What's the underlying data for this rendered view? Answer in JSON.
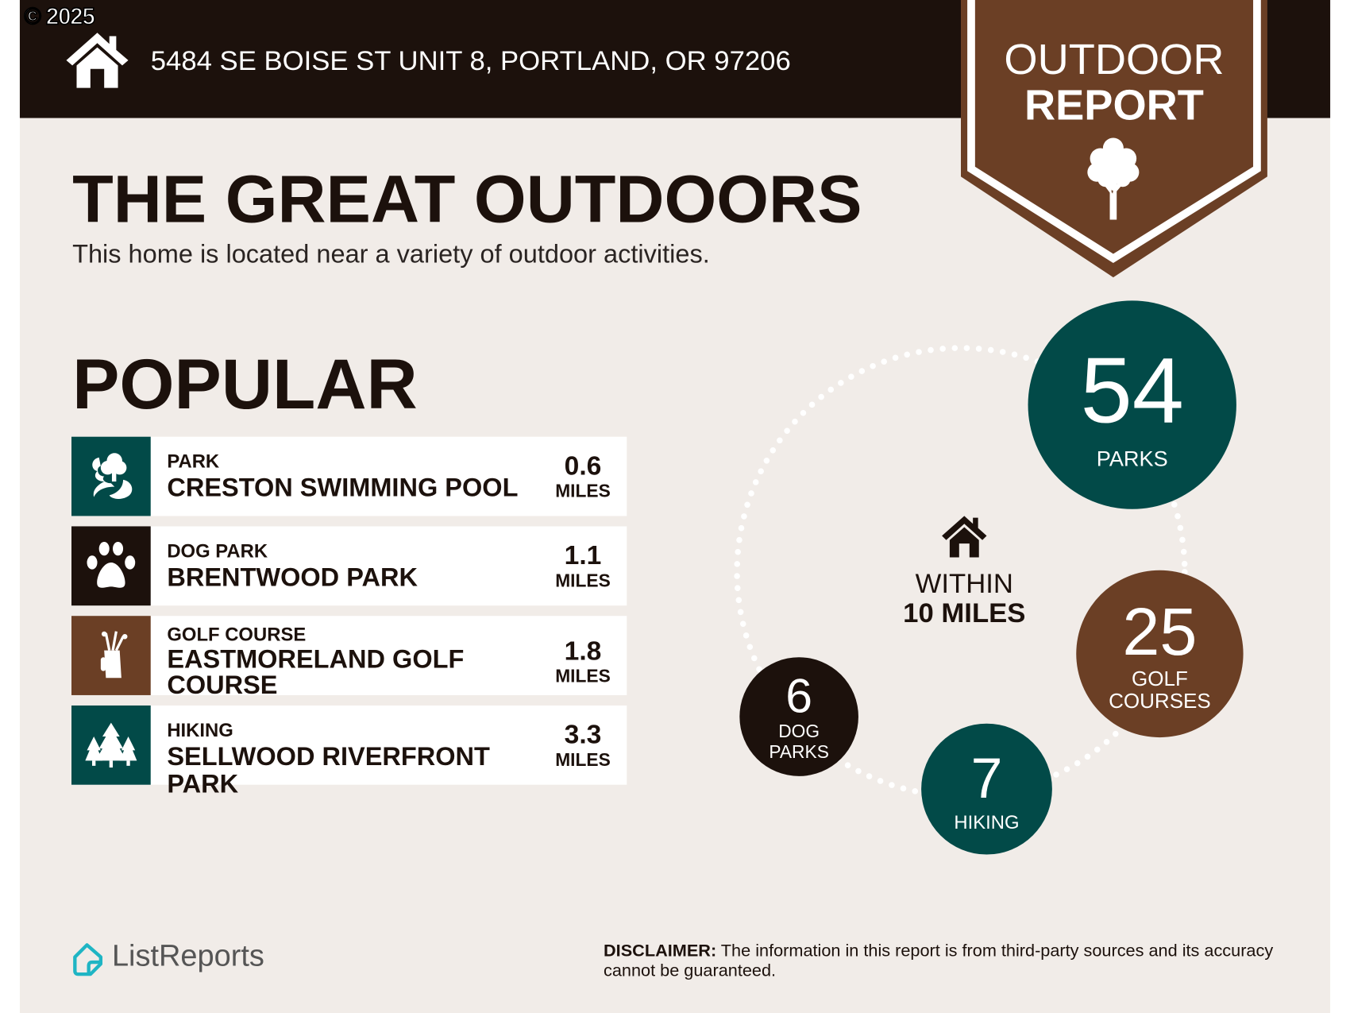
{
  "copyright": "© 2025",
  "header": {
    "address": "5484 SE BOISE ST UNIT 8, PORTLAND, OR 97206",
    "icon": "house-icon"
  },
  "badge": {
    "line1": "OUTDOOR",
    "line2": "REPORT",
    "icon": "tree-icon"
  },
  "title": "THE GREAT OUTDOORS",
  "subtitle": "This home is located near a variety of outdoor activities.",
  "popular": {
    "heading": "POPULAR",
    "items": [
      {
        "category": "PARK",
        "name": "CRESTON SWIMMING POOL",
        "distance": "0.6",
        "unit": "MILES",
        "icon": "park-icon",
        "color": "#024a48"
      },
      {
        "category": "DOG PARK",
        "name": "BRENTWOOD PARK",
        "distance": "1.1",
        "unit": "MILES",
        "icon": "paw-icon",
        "color": "#1c110c"
      },
      {
        "category": "GOLF COURSE",
        "name": "EASTMORELAND GOLF COURSE",
        "distance": "1.8",
        "unit": "MILES",
        "icon": "golf-bag-icon",
        "color": "#6b3f25"
      },
      {
        "category": "HIKING",
        "name": "SELLWOOD RIVERFRONT PARK",
        "distance": "3.3",
        "unit": "MILES",
        "icon": "pine-trees-icon",
        "color": "#024a48"
      }
    ]
  },
  "summary": {
    "within_line1": "WITHIN",
    "within_line2": "10 MILES",
    "counts": [
      {
        "value": "54",
        "label": "PARKS",
        "color": "#024a48"
      },
      {
        "value": "25",
        "label": "GOLF COURSES",
        "color": "#6b3f25"
      },
      {
        "value": "7",
        "label": "HIKING",
        "color": "#024a48"
      },
      {
        "value": "6",
        "label": "DOG PARKS",
        "color": "#1c110c"
      }
    ]
  },
  "footer": {
    "brand": "ListReports",
    "disclaimer_label": "DISCLAIMER:",
    "disclaimer_text": " The information in this report is from third-party sources and its accuracy cannot be guaranteed."
  },
  "colors": {
    "dark": "#1c110c",
    "brown": "#6b3f25",
    "teal": "#024a48",
    "background": "#f1ece8",
    "logo": "#1fb5c4"
  }
}
